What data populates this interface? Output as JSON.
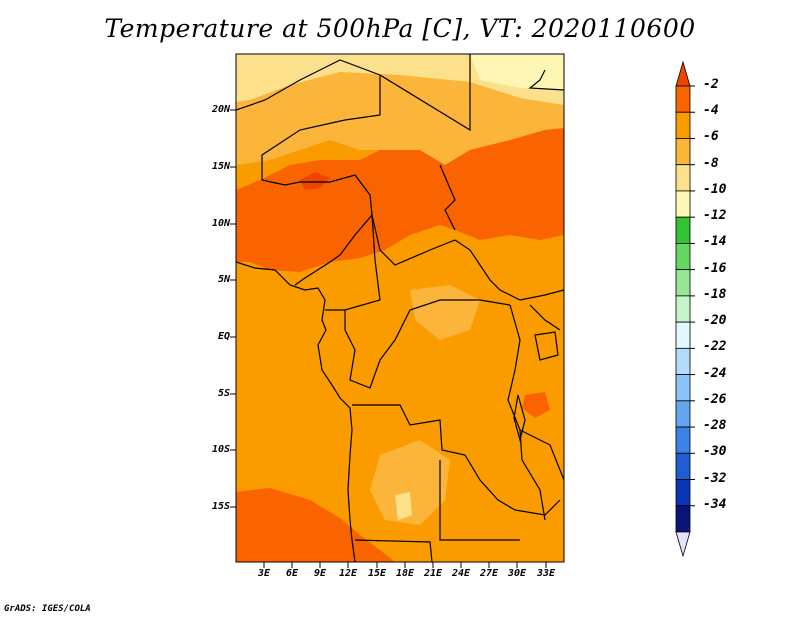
{
  "title": "Temperature at 500hPa [C], VT: 2020110600",
  "credit": "GrADS: IGES/COLA",
  "map": {
    "lat_labels": [
      "20N",
      "15N",
      "10N",
      "5N",
      "EQ",
      "5S",
      "10S",
      "15S"
    ],
    "lon_labels": [
      "3E",
      "6E",
      "9E",
      "12E",
      "15E",
      "18E",
      "21E",
      "24E",
      "27E",
      "30E",
      "33E"
    ]
  },
  "colorbar": {
    "labels": [
      "-2",
      "-4",
      "-6",
      "-8",
      "-10",
      "-12",
      "-14",
      "-16",
      "-18",
      "-20",
      "-22",
      "-24",
      "-26",
      "-28",
      "-30",
      "-32",
      "-34"
    ],
    "colors": [
      "#f04500",
      "#fa6400",
      "#fa9c00",
      "#fbb53b",
      "#fde08b",
      "#fef6b5",
      "#33c332",
      "#64d764",
      "#96e896",
      "#c8f5c8",
      "#e2f8fe",
      "#b5dbfc",
      "#8bc3fa",
      "#64a5f0",
      "#3c82e6",
      "#1e5ed2",
      "#0a35b4",
      "#0a1478",
      "#e2e2fa"
    ]
  }
}
